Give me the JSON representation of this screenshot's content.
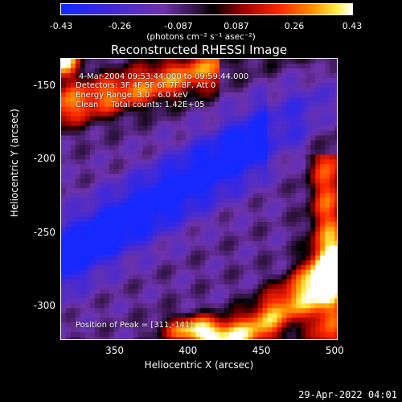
{
  "chart_data": {
    "type": "heatmap",
    "title": "Reconstructed RHESSI Image",
    "xlabel": "Heliocentric X (arcsec)",
    "ylabel": "Heliocentric Y (arcsec)",
    "xlim": [
      313,
      502
    ],
    "ylim": [
      -323,
      -131
    ],
    "xticks": [
      "350",
      "400",
      "450",
      "500"
    ],
    "xtick_values": [
      350,
      400,
      450,
      500
    ],
    "yticks": [
      "-150",
      "-200",
      "-250",
      "-300"
    ],
    "ytick_values": [
      -150,
      -200,
      -250,
      -300
    ],
    "colorbar": {
      "ticks": [
        "-0.43",
        "-0.26",
        "-0.087",
        "0.087",
        "0.26",
        "0.43"
      ],
      "tick_values": [
        -0.43,
        -0.26,
        -0.087,
        0.087,
        0.26,
        0.43
      ],
      "units": "(photons cm⁻² s⁻¹ asec⁻²)",
      "range": [
        -0.43,
        0.43
      ]
    },
    "annotations": {
      "time": "4-Mar-2004 09:53:44.000 to 09:59:44.000",
      "detectors": "Detectors: 3F 4F 5F 6F 7F 8F, Att 0",
      "energy": "Energy Range: 3.0 - 6.0 keV",
      "method": "Clean     Total counts: 1.42E+05",
      "peak": "Position of Peak = [311,-141]"
    }
  },
  "timestamp": "29-Apr-2022 04:01"
}
